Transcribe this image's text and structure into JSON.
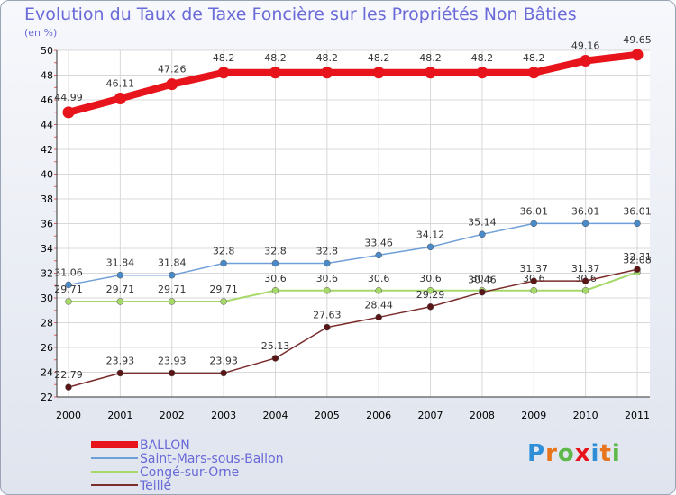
{
  "title": "Evolution du Taux de Taxe Foncière sur les Propriétés Non Bâties",
  "ylabel": "(en %)",
  "logo": "Proxiti",
  "chart_data": {
    "type": "line",
    "title": "Evolution du Taux de Taxe Foncière sur les Propriétés Non Bâties",
    "xlabel": "",
    "ylabel": "(en %)",
    "ylim": [
      22,
      50
    ],
    "yticks": [
      22,
      24,
      26,
      28,
      30,
      32,
      34,
      36,
      38,
      40,
      42,
      44,
      46,
      48,
      50
    ],
    "grid": true,
    "legend": "bottom-left",
    "x": [
      "2000",
      "2001",
      "2002",
      "2003",
      "2004",
      "2005",
      "2006",
      "2007",
      "2008",
      "2009",
      "2010",
      "2011"
    ],
    "series": [
      {
        "name": "BALLON",
        "color": "#e8141c",
        "values": [
          44.99,
          46.11,
          47.26,
          48.2,
          48.2,
          48.2,
          48.2,
          48.2,
          48.2,
          48.2,
          49.16,
          49.65
        ]
      },
      {
        "name": "Saint-Mars-sous-Ballon",
        "color": "#6f9fd8",
        "values": [
          31.06,
          31.84,
          31.84,
          32.8,
          32.8,
          32.8,
          33.46,
          34.12,
          35.14,
          36.01,
          36.01,
          36.01
        ]
      },
      {
        "name": "Congé-sur-Orne",
        "color": "#a6d96a",
        "values": [
          29.71,
          29.71,
          29.71,
          29.71,
          30.6,
          30.6,
          30.6,
          30.6,
          30.6,
          30.6,
          30.6,
          32.08
        ]
      },
      {
        "name": "Teillé",
        "color": "#7b2c2c",
        "values": [
          22.79,
          23.93,
          23.93,
          23.93,
          25.13,
          27.63,
          28.44,
          29.29,
          30.46,
          31.37,
          31.37,
          32.31
        ]
      }
    ]
  }
}
